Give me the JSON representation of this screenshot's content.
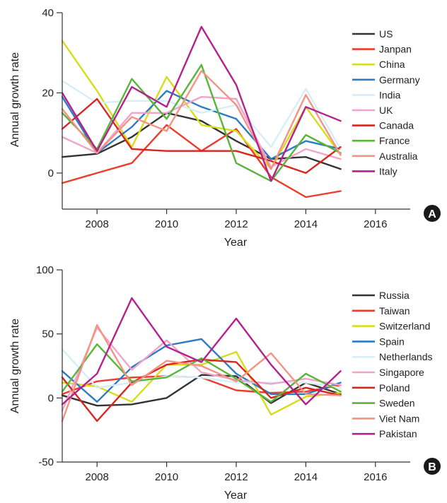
{
  "chart_data": [
    {
      "type": "line",
      "panel_label": "A",
      "xlabel": "Year",
      "ylabel": "Annual growth rate",
      "xlim": [
        2007,
        2017
      ],
      "ylim": [
        -9,
        40
      ],
      "x_ticks": [
        2008,
        2010,
        2012,
        2014,
        2016
      ],
      "y_ticks": [
        0,
        20,
        40
      ],
      "x": [
        2007,
        2008,
        2009,
        2010,
        2011,
        2012,
        2013,
        2014,
        2015
      ],
      "grid": false,
      "legend_position": "right",
      "series": [
        {
          "name": "US",
          "color": "#333333",
          "values": [
            4,
            4.8,
            9,
            15,
            13,
            8,
            3.5,
            4,
            1
          ]
        },
        {
          "name": "Janpan",
          "color": "#ee3b2b",
          "values": [
            -2.5,
            0,
            2.5,
            12,
            5.5,
            11,
            -1,
            -6,
            -4.5
          ]
        },
        {
          "name": "China",
          "color": "#d8dc1a",
          "values": [
            33,
            20.5,
            6.5,
            24,
            12,
            10.5,
            1,
            16.5,
            4.5
          ]
        },
        {
          "name": "Germany",
          "color": "#2c7bc5",
          "values": [
            19,
            5,
            11.5,
            20.5,
            16.5,
            13.5,
            3.5,
            8,
            6
          ]
        },
        {
          "name": "India",
          "color": "#d6eef7",
          "values": [
            23,
            17.5,
            18,
            18,
            15,
            17,
            6.5,
            21,
            6
          ]
        },
        {
          "name": "UK",
          "color": "#f2a3c9",
          "values": [
            9,
            5,
            15,
            15,
            19,
            18.5,
            1.5,
            6,
            3.5
          ]
        },
        {
          "name": "Canada",
          "color": "#d9251d",
          "values": [
            11,
            18.5,
            6,
            5.5,
            5.5,
            5.5,
            3,
            0,
            6.5
          ]
        },
        {
          "name": "France",
          "color": "#58b53a",
          "values": [
            15,
            6,
            23.5,
            13.5,
            27,
            2.5,
            -2,
            9.5,
            5
          ]
        },
        {
          "name": "Australia",
          "color": "#f29483",
          "values": [
            16,
            5,
            14,
            10.5,
            25.5,
            17,
            1,
            19.5,
            4.5
          ]
        },
        {
          "name": "Italy",
          "color": "#b5218b",
          "values": [
            20,
            5.5,
            21.5,
            16.5,
            36.5,
            22,
            -2,
            16.5,
            13
          ]
        }
      ]
    },
    {
      "type": "line",
      "panel_label": "B",
      "xlabel": "Year",
      "ylabel": "Annual growth rate",
      "xlim": [
        2007,
        2017
      ],
      "ylim": [
        -50,
        100
      ],
      "x_ticks": [
        2008,
        2010,
        2012,
        2014,
        2016
      ],
      "y_ticks": [
        -50,
        0,
        50,
        100
      ],
      "x": [
        2007,
        2008,
        2009,
        2010,
        2011,
        2012,
        2013,
        2014,
        2015
      ],
      "grid": false,
      "legend_position": "right",
      "series": [
        {
          "name": "Russia",
          "color": "#333333",
          "values": [
            2,
            -6,
            -5,
            0,
            18,
            17,
            -4,
            12,
            3
          ]
        },
        {
          "name": "Taiwan",
          "color": "#ee3b2b",
          "values": [
            3,
            13,
            16,
            17,
            16,
            6,
            4,
            5,
            10
          ]
        },
        {
          "name": "Switzerland",
          "color": "#d8dc1a",
          "values": [
            12,
            9,
            -3,
            26,
            26,
            36,
            -13,
            1,
            4
          ]
        },
        {
          "name": "Spain",
          "color": "#2c7bc5",
          "values": [
            21,
            -3,
            24,
            41,
            46,
            19,
            3,
            3,
            12
          ]
        },
        {
          "name": "Netherlands",
          "color": "#d6eef7",
          "values": [
            38,
            8,
            12,
            17,
            16,
            12,
            12,
            12,
            8
          ]
        },
        {
          "name": "Singapore",
          "color": "#f2a3c9",
          "values": [
            -10,
            55,
            22,
            45,
            20,
            14,
            11,
            15,
            10
          ]
        },
        {
          "name": "Poland",
          "color": "#d9251d",
          "values": [
            16,
            -18,
            12,
            26,
            30,
            28,
            0,
            8,
            2
          ]
        },
        {
          "name": "Sweden",
          "color": "#58b53a",
          "values": [
            5,
            42,
            13,
            16,
            31,
            15,
            -3,
            19,
            5
          ]
        },
        {
          "name": "Viet Nam",
          "color": "#f29483",
          "values": [
            -18,
            57,
            10,
            29,
            25,
            13,
            35,
            3,
            2
          ]
        },
        {
          "name": "Pakistan",
          "color": "#b5218b",
          "values": [
            -5,
            19,
            78,
            40,
            28,
            62,
            26,
            -5,
            21
          ]
        }
      ]
    }
  ]
}
